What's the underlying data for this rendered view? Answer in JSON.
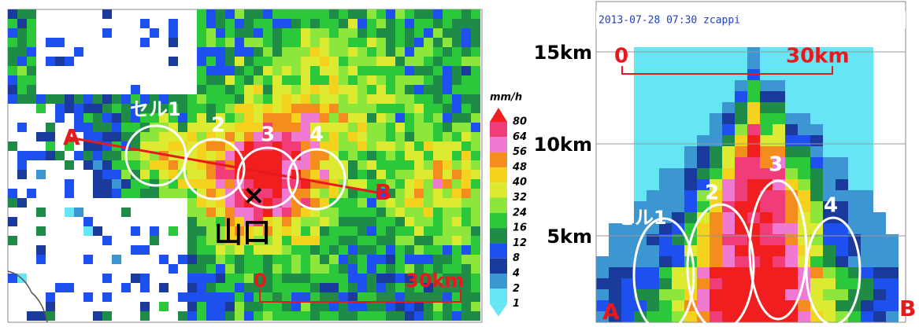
{
  "left_map": {
    "cell_labels": [
      "セル1",
      "2",
      "3",
      "4"
    ],
    "point_a": "A",
    "point_b": "B",
    "city": "山口",
    "marker": "×",
    "scale": {
      "start": "0",
      "end": "30km"
    }
  },
  "colorbar": {
    "unit": "mm/h",
    "ticks": [
      80,
      64,
      56,
      48,
      40,
      32,
      24,
      16,
      12,
      8,
      4,
      2,
      1
    ]
  },
  "right_section": {
    "header": "2013-07-28 07:30 zcappi",
    "y_labels": [
      "15km",
      "10km",
      "5km"
    ],
    "scale": {
      "start": "0",
      "end": "30km"
    },
    "cell_labels": [
      "セル1",
      "2",
      "3",
      "4"
    ],
    "point_a": "A",
    "point_b": "B"
  }
}
